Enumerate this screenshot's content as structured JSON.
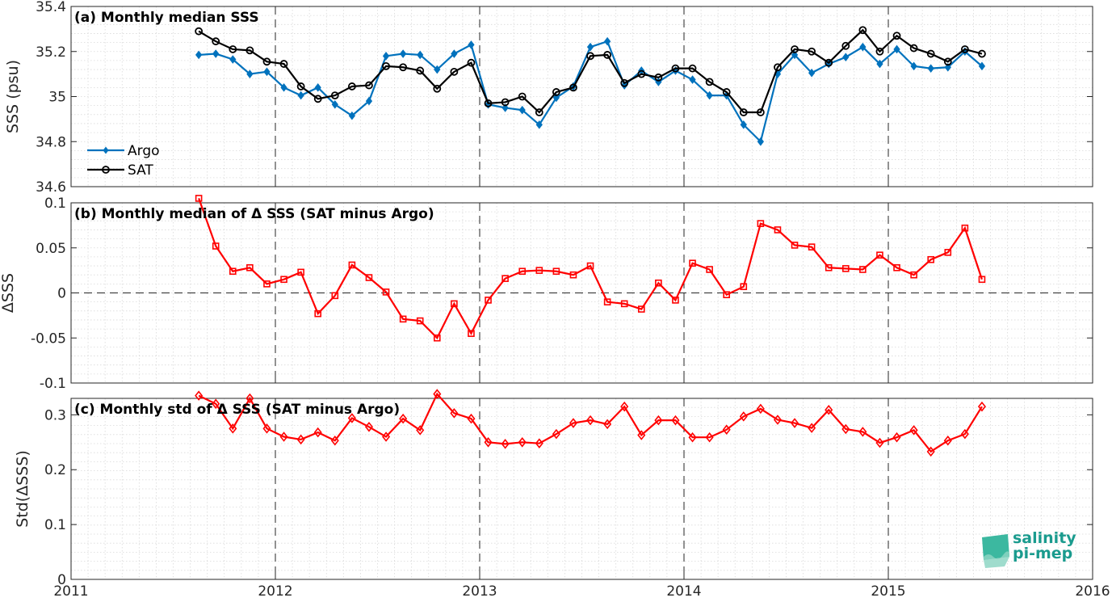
{
  "chart_data": [
    {
      "type": "line",
      "title": "(a) Monthly median SSS",
      "xlabel": "",
      "ylabel": "SSS (psu)",
      "xlim": [
        2011,
        2016
      ],
      "ylim": [
        34.6,
        35.4
      ],
      "x_ticks": [
        "2011",
        "2012",
        "2013",
        "2014",
        "2015",
        "2016"
      ],
      "y_ticks": [
        "34.6",
        "34.8",
        "35",
        "35.2",
        "35.4"
      ],
      "grid": true,
      "legend": "bottom-left",
      "x": [
        "2011-08",
        "2011-09",
        "2011-10",
        "2011-11",
        "2011-12",
        "2012-01",
        "2012-02",
        "2012-03",
        "2012-04",
        "2012-05",
        "2012-06",
        "2012-07",
        "2012-08",
        "2012-09",
        "2012-10",
        "2012-11",
        "2012-12",
        "2013-01",
        "2013-02",
        "2013-03",
        "2013-04",
        "2013-05",
        "2013-06",
        "2013-07",
        "2013-08",
        "2013-09",
        "2013-10",
        "2013-11",
        "2013-12",
        "2014-01",
        "2014-02",
        "2014-03",
        "2014-04",
        "2014-05",
        "2014-06",
        "2014-07",
        "2014-08",
        "2014-09",
        "2014-10",
        "2014-11",
        "2014-12",
        "2015-01",
        "2015-02",
        "2015-03",
        "2015-04",
        "2015-05",
        "2015-06"
      ],
      "series": [
        {
          "name": "Argo",
          "color": "#0072bd",
          "marker": "diamond",
          "values": [
            35.185,
            35.19,
            35.165,
            35.1,
            35.11,
            35.04,
            35.005,
            35.04,
            34.965,
            34.915,
            34.98,
            35.18,
            35.19,
            35.185,
            35.12,
            35.19,
            35.23,
            34.965,
            34.95,
            34.94,
            34.875,
            34.995,
            35.045,
            35.22,
            35.245,
            35.05,
            35.115,
            35.065,
            35.115,
            35.075,
            35.005,
            35.005,
            34.875,
            34.8,
            35.1,
            35.185,
            35.105,
            35.145,
            35.175,
            35.22,
            35.145,
            35.21,
            35.135,
            35.125,
            35.13,
            35.2,
            35.135
          ]
        },
        {
          "name": "SAT",
          "color": "#000000",
          "marker": "circle",
          "values": [
            35.29,
            35.245,
            35.21,
            35.205,
            35.155,
            35.145,
            35.045,
            34.99,
            35.005,
            35.045,
            35.05,
            35.135,
            35.13,
            35.115,
            35.035,
            35.11,
            35.15,
            34.97,
            34.975,
            35.0,
            34.93,
            35.02,
            35.04,
            35.18,
            35.185,
            35.06,
            35.1,
            35.085,
            35.125,
            35.125,
            35.065,
            35.02,
            34.93,
            34.93,
            35.13,
            35.21,
            35.2,
            35.15,
            35.225,
            35.295,
            35.2,
            35.27,
            35.215,
            35.19,
            35.155,
            35.21,
            35.19
          ]
        }
      ]
    },
    {
      "type": "line",
      "title": "(b) Monthly median of Δ SSS (SAT minus Argo)",
      "xlabel": "",
      "ylabel": "ΔSSS",
      "xlim": [
        2011,
        2016
      ],
      "ylim": [
        -0.1,
        0.1
      ],
      "x_ticks": [
        "2011",
        "2012",
        "2013",
        "2014",
        "2015",
        "2016"
      ],
      "y_ticks": [
        "-0.1",
        "-0.05",
        "0",
        "0.05",
        "0.1"
      ],
      "grid": true,
      "zero_line": true,
      "x": [
        "2011-08",
        "2011-09",
        "2011-10",
        "2011-11",
        "2011-12",
        "2012-01",
        "2012-02",
        "2012-03",
        "2012-04",
        "2012-05",
        "2012-06",
        "2012-07",
        "2012-08",
        "2012-09",
        "2012-10",
        "2012-11",
        "2012-12",
        "2013-01",
        "2013-02",
        "2013-03",
        "2013-04",
        "2013-05",
        "2013-06",
        "2013-07",
        "2013-08",
        "2013-09",
        "2013-10",
        "2013-11",
        "2013-12",
        "2014-01",
        "2014-02",
        "2014-03",
        "2014-04",
        "2014-05",
        "2014-06",
        "2014-07",
        "2014-08",
        "2014-09",
        "2014-10",
        "2014-11",
        "2014-12",
        "2015-01",
        "2015-02",
        "2015-03",
        "2015-04",
        "2015-05",
        "2015-06"
      ],
      "series": [
        {
          "color": "#ff0000",
          "marker": "square",
          "values": [
            0.105,
            0.052,
            0.024,
            0.028,
            0.01,
            0.015,
            0.023,
            -0.023,
            -0.003,
            0.031,
            0.017,
            0.001,
            -0.029,
            -0.031,
            -0.05,
            -0.012,
            -0.045,
            -0.008,
            0.016,
            0.024,
            0.025,
            0.024,
            0.02,
            0.03,
            -0.01,
            -0.012,
            -0.018,
            0.011,
            -0.008,
            0.033,
            0.026,
            -0.002,
            0.007,
            0.077,
            0.07,
            0.053,
            0.051,
            0.028,
            0.027,
            0.026,
            0.042,
            0.028,
            0.02,
            0.037,
            0.045,
            0.072,
            0.015
          ]
        }
      ]
    },
    {
      "type": "line",
      "title": "(c) Monthly std of Δ SSS (SAT minus Argo)",
      "xlabel": "",
      "ylabel": "Std(ΔSSS)",
      "xlim": [
        2011,
        2016
      ],
      "ylim": [
        0,
        0.33
      ],
      "x_ticks": [
        "2011",
        "2012",
        "2013",
        "2014",
        "2015",
        "2016"
      ],
      "y_ticks": [
        "0",
        "0.1",
        "0.2",
        "0.3"
      ],
      "grid": true,
      "x": [
        "2011-08",
        "2011-09",
        "2011-10",
        "2011-11",
        "2011-12",
        "2012-01",
        "2012-02",
        "2012-03",
        "2012-04",
        "2012-05",
        "2012-06",
        "2012-07",
        "2012-08",
        "2012-09",
        "2012-10",
        "2012-11",
        "2012-12",
        "2013-01",
        "2013-02",
        "2013-03",
        "2013-04",
        "2013-05",
        "2013-06",
        "2013-07",
        "2013-08",
        "2013-09",
        "2013-10",
        "2013-11",
        "2013-12",
        "2014-01",
        "2014-02",
        "2014-03",
        "2014-04",
        "2014-05",
        "2014-06",
        "2014-07",
        "2014-08",
        "2014-09",
        "2014-10",
        "2014-11",
        "2014-12",
        "2015-01",
        "2015-02",
        "2015-03",
        "2015-04",
        "2015-05",
        "2015-06"
      ],
      "series": [
        {
          "color": "#ff0000",
          "marker": "diamond",
          "values": [
            0.335,
            0.32,
            0.275,
            0.33,
            0.275,
            0.26,
            0.255,
            0.268,
            0.253,
            0.294,
            0.278,
            0.26,
            0.293,
            0.272,
            0.338,
            0.303,
            0.293,
            0.25,
            0.247,
            0.25,
            0.248,
            0.265,
            0.285,
            0.29,
            0.283,
            0.315,
            0.263,
            0.29,
            0.29,
            0.259,
            0.259,
            0.273,
            0.297,
            0.311,
            0.291,
            0.285,
            0.276,
            0.309,
            0.274,
            0.269,
            0.249,
            0.259,
            0.272,
            0.233,
            0.253,
            0.265,
            0.315
          ]
        }
      ]
    }
  ],
  "logo": {
    "line1": "salinity",
    "line2": "pi-mep"
  },
  "colors": {
    "argo": "#0072bd",
    "sat": "#000000",
    "delta": "#ff0000",
    "logo": "#1a9b8e"
  }
}
